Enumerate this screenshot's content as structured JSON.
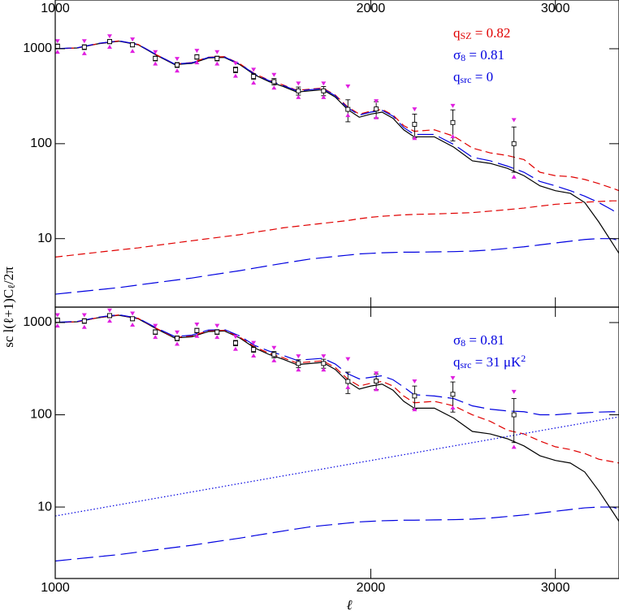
{
  "chart_data": [
    {
      "type": "line",
      "log_x": true,
      "log_y": true,
      "xlim": [
        1000,
        3450
      ],
      "ylim": [
        1.9,
        3260
      ],
      "xticks": [
        1000,
        2000,
        3000
      ],
      "yticks": [
        10,
        100,
        1000
      ],
      "ylabel": [
        {
          "text": "sc l(ℓ+1)C"
        },
        {
          "text": "ℓ",
          "sub": true
        },
        {
          "text": "/2π"
        }
      ],
      "annotations": [
        {
          "color": "#e00000",
          "parts": [
            {
              "text": "q"
            },
            {
              "text": "SZ",
              "sub": true
            },
            {
              "text": " = 0.82"
            }
          ]
        },
        {
          "color": "#0000e0",
          "parts": [
            {
              "text": "σ"
            },
            {
              "text": "8",
              "sub": true
            },
            {
              "text": " = 0.81"
            }
          ]
        },
        {
          "color": "#0000e0",
          "parts": [
            {
              "text": "q"
            },
            {
              "text": "src",
              "sub": true
            },
            {
              "text": " = 0"
            }
          ]
        }
      ],
      "x": [
        1000,
        1050,
        1100,
        1150,
        1200,
        1250,
        1300,
        1350,
        1400,
        1450,
        1500,
        1550,
        1600,
        1650,
        1700,
        1750,
        1800,
        1850,
        1900,
        1950,
        2000,
        2050,
        2100,
        2150,
        2200,
        2300,
        2400,
        2500,
        2600,
        2700,
        2800,
        2900,
        3000,
        3100,
        3200,
        3300,
        3400,
        3450
      ],
      "series": [
        {
          "color": "#000000",
          "style": "solid",
          "values": [
            1000,
            1020,
            1130,
            1200,
            1100,
            850,
            680,
            700,
            800,
            810,
            680,
            530,
            450,
            400,
            350,
            360,
            370,
            310,
            230,
            190,
            205,
            215,
            185,
            140,
            118,
            118,
            92,
            66,
            62,
            55,
            46,
            36,
            32,
            30,
            24,
            15,
            9,
            7
          ]
        },
        {
          "color": "#e00000",
          "style": "dashed",
          "values": [
            1000,
            1020,
            1135,
            1210,
            1110,
            860,
            690,
            715,
            815,
            825,
            695,
            545,
            465,
            415,
            365,
            375,
            385,
            325,
            245,
            205,
            220,
            230,
            200,
            155,
            135,
            140,
            120,
            90,
            80,
            75,
            68,
            50,
            46,
            45,
            42,
            38,
            34,
            32
          ]
        },
        {
          "color": "#0000e0",
          "style": "longdash",
          "values": [
            1000,
            1025,
            1140,
            1210,
            1110,
            860,
            690,
            710,
            810,
            820,
            690,
            540,
            460,
            410,
            360,
            370,
            380,
            320,
            240,
            200,
            215,
            225,
            195,
            148,
            125,
            125,
            98,
            72,
            66,
            58,
            50,
            40,
            36,
            32,
            28,
            24,
            20,
            18
          ]
        },
        {
          "color": "#e00000",
          "style": "dashed",
          "values": [
            6.4,
            6.8,
            7.2,
            7.6,
            8,
            8.5,
            9,
            9.5,
            10,
            10.5,
            11,
            11.7,
            12.3,
            13,
            13.5,
            14,
            14.5,
            15,
            15.5,
            16.2,
            16.8,
            17.2,
            17.5,
            17.8,
            18,
            18.2,
            18.5,
            18.8,
            19.5,
            20.2,
            21,
            22,
            23,
            23.6,
            24.2,
            24.6,
            25,
            25
          ]
        },
        {
          "color": "#0000e0",
          "style": "longdash",
          "values": [
            2.6,
            2.75,
            2.9,
            3.05,
            3.25,
            3.45,
            3.65,
            3.85,
            4.1,
            4.35,
            4.6,
            4.9,
            5.2,
            5.5,
            5.8,
            6.1,
            6.3,
            6.5,
            6.7,
            6.9,
            7,
            7.1,
            7.15,
            7.2,
            7.2,
            7.25,
            7.3,
            7.4,
            7.6,
            7.9,
            8.2,
            8.6,
            9,
            9.4,
            9.8,
            10,
            10,
            9.5
          ]
        }
      ],
      "points": {
        "x": [
          1005,
          1066,
          1127,
          1185,
          1246,
          1307,
          1365,
          1427,
          1486,
          1546,
          1617,
          1706,
          1803,
          1902,
          2024,
          2202,
          2395,
          2739
        ],
        "values": [
          1060,
          1040,
          1190,
          1100,
          790,
          675,
          820,
          790,
          600,
          510,
          450,
          360,
          360,
          230,
          232,
          160,
          167,
          100
        ],
        "errors": [
          60,
          60,
          60,
          55,
          45,
          40,
          45,
          45,
          40,
          35,
          35,
          35,
          40,
          60,
          45,
          45,
          60,
          50
        ],
        "upper": [
          1200,
          1200,
          1350,
          1250,
          920,
          780,
          950,
          920,
          700,
          600,
          530,
          430,
          430,
          400,
          280,
          230,
          250,
          177
        ],
        "lower": [
          930,
          900,
          1050,
          950,
          700,
          590,
          720,
          700,
          520,
          440,
          390,
          310,
          310,
          200,
          190,
          115,
          120,
          45
        ]
      }
    },
    {
      "type": "line",
      "log_x": true,
      "log_y": true,
      "xlim": [
        1000,
        3450
      ],
      "ylim": [
        1.68,
        1470
      ],
      "xticks": [
        1000,
        2000,
        3000
      ],
      "yticks": [
        10,
        100,
        1000
      ],
      "xlabel": "ℓ",
      "annotations": [
        {
          "color": "#0000e0",
          "parts": [
            {
              "text": "σ"
            },
            {
              "text": "8",
              "sub": true
            },
            {
              "text": " = 0.81"
            }
          ]
        },
        {
          "color": "#0000e0",
          "parts": [
            {
              "text": "q"
            },
            {
              "text": "src",
              "sub": true
            },
            {
              "text": " = 31 μK"
            },
            {
              "text": "2",
              "sup": true
            }
          ]
        }
      ],
      "x": [
        1000,
        1050,
        1100,
        1150,
        1200,
        1250,
        1300,
        1350,
        1400,
        1450,
        1500,
        1550,
        1600,
        1650,
        1700,
        1750,
        1800,
        1850,
        1900,
        1950,
        2000,
        2050,
        2100,
        2150,
        2200,
        2300,
        2400,
        2500,
        2600,
        2700,
        2800,
        2900,
        3000,
        3100,
        3200,
        3300,
        3400,
        3450
      ],
      "series": [
        {
          "color": "#000000",
          "style": "solid",
          "values": [
            1000,
            1020,
            1130,
            1200,
            1100,
            850,
            680,
            700,
            800,
            810,
            680,
            530,
            450,
            400,
            350,
            360,
            370,
            310,
            230,
            190,
            205,
            215,
            185,
            140,
            118,
            118,
            92,
            66,
            62,
            55,
            46,
            36,
            32,
            30,
            24,
            15,
            9,
            7
          ]
        },
        {
          "color": "#e00000",
          "style": "dashed",
          "values": [
            1000,
            1020,
            1135,
            1210,
            1110,
            860,
            690,
            715,
            815,
            825,
            695,
            545,
            465,
            415,
            365,
            375,
            385,
            325,
            245,
            205,
            220,
            230,
            205,
            160,
            135,
            140,
            125,
            100,
            85,
            68,
            62,
            52,
            45,
            42,
            38,
            33,
            31,
            30
          ]
        },
        {
          "color": "#0000e0",
          "style": "longdash",
          "values": [
            1005,
            1030,
            1145,
            1215,
            1115,
            870,
            705,
            730,
            830,
            840,
            715,
            565,
            490,
            440,
            390,
            400,
            410,
            355,
            280,
            245,
            255,
            265,
            240,
            200,
            165,
            160,
            150,
            125,
            115,
            110,
            108,
            100,
            100,
            103,
            105,
            107,
            108,
            108
          ]
        },
        {
          "color": "#0000e0",
          "style": "longdash",
          "values": [
            2.6,
            2.75,
            2.9,
            3.05,
            3.25,
            3.45,
            3.65,
            3.85,
            4.1,
            4.35,
            4.6,
            4.9,
            5.2,
            5.5,
            5.8,
            6.1,
            6.3,
            6.5,
            6.7,
            6.9,
            7,
            7.1,
            7.15,
            7.2,
            7.2,
            7.25,
            7.3,
            7.4,
            7.6,
            7.9,
            8.2,
            8.6,
            9,
            9.4,
            9.8,
            10,
            10,
            9.5
          ]
        },
        {
          "color": "#0000e0",
          "style": "dotted",
          "x": [
            1000,
            3450
          ],
          "values": [
            8,
            95
          ]
        }
      ],
      "points": {
        "x": [
          1005,
          1066,
          1127,
          1185,
          1246,
          1307,
          1365,
          1427,
          1486,
          1546,
          1617,
          1706,
          1803,
          1902,
          2024,
          2202,
          2395,
          2739
        ],
        "values": [
          1060,
          1040,
          1190,
          1100,
          790,
          675,
          820,
          790,
          600,
          510,
          450,
          360,
          360,
          230,
          232,
          160,
          167,
          100
        ],
        "errors": [
          60,
          60,
          60,
          55,
          45,
          40,
          45,
          45,
          40,
          35,
          35,
          35,
          40,
          60,
          45,
          45,
          60,
          50
        ],
        "upper": [
          1200,
          1200,
          1350,
          1250,
          920,
          780,
          950,
          920,
          700,
          600,
          530,
          430,
          430,
          400,
          280,
          230,
          250,
          177
        ],
        "lower": [
          930,
          900,
          1050,
          950,
          700,
          590,
          720,
          700,
          520,
          440,
          390,
          310,
          310,
          200,
          190,
          115,
          120,
          45
        ]
      }
    }
  ]
}
